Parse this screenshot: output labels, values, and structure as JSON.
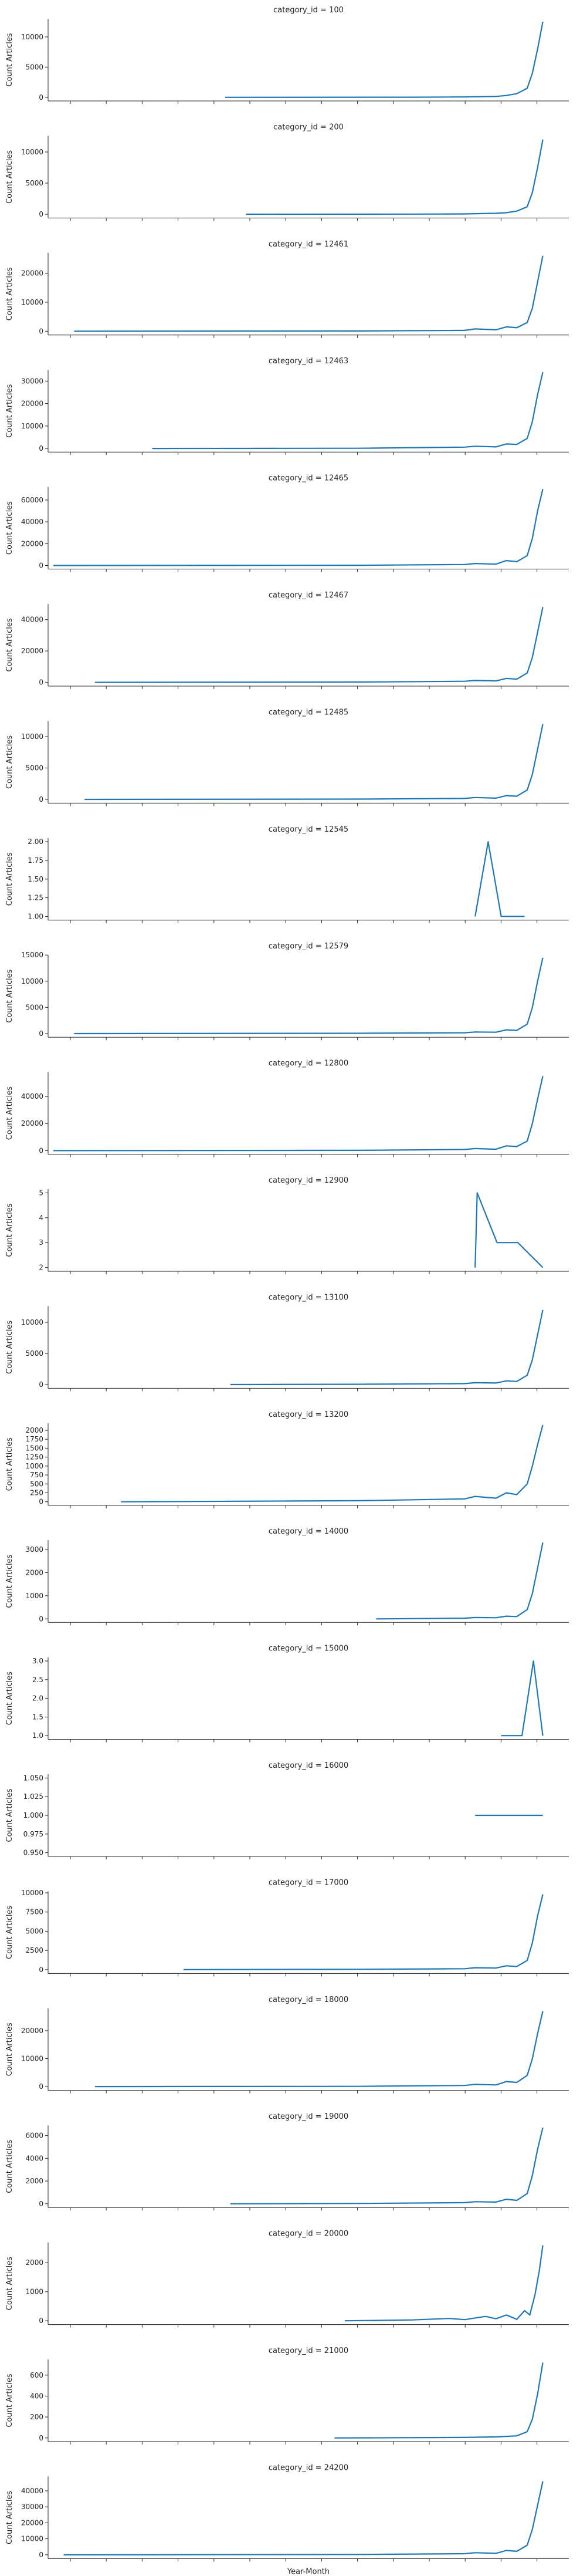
{
  "figure": {
    "xlabel": "Year-Month",
    "series_color": "#1f77b4",
    "x_range": [
      0,
      100
    ]
  },
  "chart_data": [
    {
      "type": "line",
      "title": "category_id = 100",
      "ylabel": "Count Articles",
      "yticks": [
        "0",
        "5000",
        "10000"
      ],
      "ylim": [
        -600,
        13000
      ],
      "x": [
        34,
        70,
        80,
        86,
        88,
        90,
        92,
        93,
        94,
        95
      ],
      "y": [
        0,
        20,
        60,
        150,
        300,
        600,
        1500,
        4000,
        8000,
        12500
      ]
    },
    {
      "type": "line",
      "title": "category_id = 200",
      "ylabel": "Count Articles",
      "yticks": [
        "0",
        "5000",
        "10000"
      ],
      "ylim": [
        -600,
        12600
      ],
      "x": [
        38,
        70,
        80,
        86,
        88,
        90,
        92,
        93,
        94,
        95
      ],
      "y": [
        0,
        20,
        50,
        150,
        250,
        500,
        1200,
        3500,
        7500,
        12000
      ]
    },
    {
      "type": "line",
      "title": "category_id = 12461",
      "ylabel": "Count Articles",
      "yticks": [
        "0",
        "10000",
        "20000"
      ],
      "ylim": [
        -1300,
        27000
      ],
      "x": [
        5,
        60,
        80,
        82,
        86,
        88,
        90,
        92,
        93,
        94,
        95
      ],
      "y": [
        0,
        100,
        300,
        800,
        500,
        1500,
        1200,
        3000,
        8000,
        17000,
        26000
      ]
    },
    {
      "type": "line",
      "title": "category_id = 12463",
      "ylabel": "Count Articles",
      "yticks": [
        "0",
        "10000",
        "20000",
        "30000"
      ],
      "ylim": [
        -1600,
        35000
      ],
      "x": [
        20,
        60,
        80,
        82,
        86,
        88,
        90,
        92,
        93,
        94,
        95
      ],
      "y": [
        0,
        100,
        600,
        1000,
        700,
        2000,
        1800,
        4500,
        12000,
        24000,
        34000
      ]
    },
    {
      "type": "line",
      "title": "category_id = 12465",
      "ylabel": "Count Articles",
      "yticks": [
        "0",
        "20000",
        "40000",
        "60000"
      ],
      "ylim": [
        -3300,
        72000
      ],
      "x": [
        1,
        60,
        80,
        82,
        86,
        88,
        90,
        92,
        93,
        94,
        95
      ],
      "y": [
        0,
        200,
        900,
        1800,
        1200,
        4500,
        3500,
        9000,
        25000,
        50000,
        70000
      ]
    },
    {
      "type": "line",
      "title": "category_id = 12467",
      "ylabel": "Count Articles",
      "yticks": [
        "0",
        "20000",
        "40000"
      ],
      "ylim": [
        -2400,
        50000
      ],
      "x": [
        9,
        60,
        80,
        82,
        86,
        88,
        90,
        92,
        93,
        94,
        95
      ],
      "y": [
        0,
        200,
        700,
        1200,
        900,
        2500,
        2000,
        6000,
        16000,
        32000,
        48000
      ]
    },
    {
      "type": "line",
      "title": "category_id = 12485",
      "ylabel": "Count Articles",
      "yticks": [
        "0",
        "5000",
        "10000"
      ],
      "ylim": [
        -600,
        12500
      ],
      "x": [
        7,
        60,
        80,
        82,
        86,
        88,
        90,
        92,
        93,
        94,
        95
      ],
      "y": [
        0,
        50,
        150,
        300,
        200,
        600,
        500,
        1500,
        4000,
        8000,
        12000
      ]
    },
    {
      "type": "line",
      "title": "category_id = 12545",
      "ylabel": "Count Articles",
      "yticks": [
        "1.00",
        "1.25",
        "1.50",
        "1.75",
        "2.00"
      ],
      "ylim": [
        0.95,
        2.05
      ],
      "x": [
        82,
        84.5,
        87,
        91.5
      ],
      "y": [
        1,
        2,
        1,
        1
      ]
    },
    {
      "type": "line",
      "title": "category_id = 12579",
      "ylabel": "Count Articles",
      "yticks": [
        "0",
        "5000",
        "10000",
        "15000"
      ],
      "ylim": [
        -700,
        15000
      ],
      "x": [
        5,
        60,
        80,
        82,
        86,
        88,
        90,
        92,
        93,
        94,
        95
      ],
      "y": [
        0,
        50,
        150,
        300,
        250,
        700,
        600,
        1800,
        5000,
        10000,
        14500
      ]
    },
    {
      "type": "line",
      "title": "category_id = 12800",
      "ylabel": "Count Articles",
      "yticks": [
        "0",
        "20000",
        "40000"
      ],
      "ylim": [
        -2700,
        58000
      ],
      "x": [
        1,
        60,
        80,
        82,
        86,
        88,
        90,
        92,
        93,
        94,
        95
      ],
      "y": [
        0,
        200,
        800,
        1500,
        1000,
        3500,
        3000,
        7000,
        20000,
        38000,
        55000
      ]
    },
    {
      "type": "line",
      "title": "category_id = 12900",
      "ylabel": "Count Articles",
      "yticks": [
        "2",
        "3",
        "4",
        "5"
      ],
      "ylim": [
        1.85,
        5.15
      ],
      "x": [
        82,
        82.4,
        86.2,
        90.2,
        95
      ],
      "y": [
        2,
        5,
        3,
        3,
        2
      ]
    },
    {
      "type": "line",
      "title": "category_id = 13100",
      "ylabel": "Count Articles",
      "yticks": [
        "0",
        "5000",
        "10000"
      ],
      "ylim": [
        -600,
        12600
      ],
      "x": [
        35,
        60,
        80,
        82,
        86,
        88,
        90,
        92,
        93,
        94,
        95
      ],
      "y": [
        0,
        50,
        150,
        300,
        250,
        600,
        500,
        1500,
        4000,
        8000,
        12000
      ]
    },
    {
      "type": "line",
      "title": "category_id = 13200",
      "ylabel": "Count Articles",
      "yticks": [
        "0",
        "250",
        "500",
        "750",
        "1000",
        "1250",
        "1500",
        "1750",
        "2000"
      ],
      "ylim": [
        -100,
        2200
      ],
      "x": [
        14,
        60,
        80,
        82,
        86,
        88,
        90,
        92,
        93,
        94,
        95
      ],
      "y": [
        0,
        30,
        80,
        150,
        100,
        250,
        200,
        500,
        1000,
        1600,
        2150
      ]
    },
    {
      "type": "line",
      "title": "category_id = 14000",
      "ylabel": "Count Articles",
      "yticks": [
        "0",
        "1000",
        "2000",
        "3000"
      ],
      "ylim": [
        -150,
        3400
      ],
      "x": [
        63,
        80,
        82,
        86,
        88,
        90,
        92,
        93,
        94,
        95
      ],
      "y": [
        0,
        30,
        60,
        50,
        120,
        100,
        400,
        1100,
        2200,
        3300
      ]
    },
    {
      "type": "line",
      "title": "category_id = 15000",
      "ylabel": "Count Articles",
      "yticks": [
        "1.0",
        "1.5",
        "2.0",
        "2.5",
        "3.0"
      ],
      "ylim": [
        0.9,
        3.1
      ],
      "x": [
        87,
        91,
        93.2,
        95
      ],
      "y": [
        1,
        1,
        3,
        1
      ]
    },
    {
      "type": "line",
      "title": "category_id = 16000",
      "ylabel": "Count Articles",
      "yticks": [
        "0.950",
        "0.975",
        "1.000",
        "1.025",
        "1.050"
      ],
      "ylim": [
        0.945,
        1.055
      ],
      "x": [
        82,
        95
      ],
      "y": [
        1,
        1
      ]
    },
    {
      "type": "line",
      "title": "category_id = 17000",
      "ylabel": "Count Articles",
      "yticks": [
        "0",
        "2500",
        "5000",
        "7500",
        "10000"
      ],
      "ylim": [
        -500,
        10200
      ],
      "x": [
        26,
        60,
        80,
        82,
        86,
        88,
        90,
        92,
        93,
        94,
        95
      ],
      "y": [
        0,
        40,
        120,
        250,
        200,
        500,
        400,
        1200,
        3500,
        7000,
        9800
      ]
    },
    {
      "type": "line",
      "title": "category_id = 18000",
      "ylabel": "Count Articles",
      "yticks": [
        "0",
        "10000",
        "20000"
      ],
      "ylim": [
        -1400,
        28000
      ],
      "x": [
        9,
        60,
        80,
        82,
        86,
        88,
        90,
        92,
        93,
        94,
        95
      ],
      "y": [
        0,
        100,
        400,
        800,
        600,
        1800,
        1500,
        4000,
        10000,
        19000,
        27000
      ]
    },
    {
      "type": "line",
      "title": "category_id = 19000",
      "ylabel": "Count Articles",
      "yticks": [
        "0",
        "2000",
        "4000",
        "6000"
      ],
      "ylim": [
        -330,
        6900
      ],
      "x": [
        35,
        60,
        80,
        82,
        86,
        88,
        90,
        92,
        93,
        94,
        95
      ],
      "y": [
        0,
        30,
        100,
        180,
        150,
        400,
        300,
        900,
        2500,
        4800,
        6700
      ]
    },
    {
      "type": "line",
      "title": "category_id = 20000",
      "ylabel": "Count Articles",
      "yticks": [
        "0",
        "1000",
        "2000"
      ],
      "ylim": [
        -130,
        2700
      ],
      "x": [
        57,
        70,
        77,
        80,
        84,
        86,
        88,
        90,
        91.5,
        92.5,
        93.5,
        94.3,
        95
      ],
      "y": [
        0,
        30,
        80,
        40,
        150,
        70,
        200,
        50,
        350,
        200,
        900,
        1700,
        2600
      ]
    },
    {
      "type": "line",
      "title": "category_id = 21000",
      "ylabel": "Count Articles",
      "yticks": [
        "0",
        "200",
        "400",
        "600"
      ],
      "ylim": [
        -35,
        750
      ],
      "x": [
        55,
        80,
        86,
        88,
        90,
        92,
        93,
        94,
        95
      ],
      "y": [
        0,
        5,
        10,
        15,
        20,
        60,
        180,
        420,
        720
      ]
    },
    {
      "type": "line",
      "title": "category_id = 24200",
      "ylabel": "Count Articles",
      "yticks": [
        "0",
        "10000",
        "20000",
        "30000",
        "40000"
      ],
      "ylim": [
        -2400,
        49000
      ],
      "x": [
        3,
        60,
        80,
        82,
        86,
        88,
        90,
        92,
        93,
        94,
        95
      ],
      "y": [
        0,
        200,
        700,
        1300,
        900,
        2700,
        2200,
        6000,
        16000,
        31000,
        46000
      ]
    }
  ]
}
